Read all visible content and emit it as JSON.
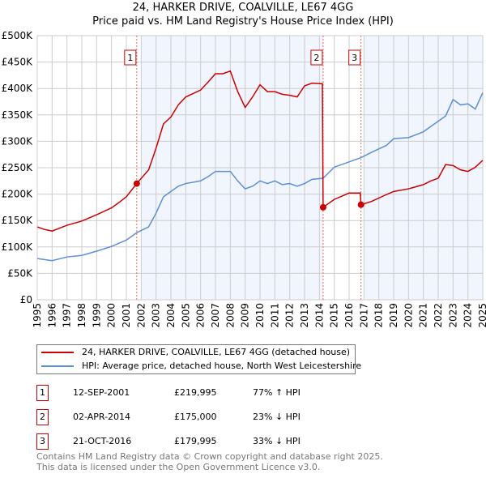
{
  "chart_data": {
    "type": "line",
    "title": "24, HARKER DRIVE, COALVILLE, LE67 4GG",
    "subtitle": "Price paid vs. HM Land Registry's House Price Index (HPI)",
    "xlim": [
      1995,
      2025
    ],
    "ylim": [
      0,
      500000
    ],
    "x_ticks": [
      "1995",
      "1996",
      "1997",
      "1998",
      "1999",
      "2000",
      "2001",
      "2002",
      "2003",
      "2004",
      "2005",
      "2006",
      "2007",
      "2008",
      "2009",
      "2010",
      "2011",
      "2012",
      "2013",
      "2014",
      "2015",
      "2016",
      "2017",
      "2018",
      "2019",
      "2020",
      "2021",
      "2022",
      "2023",
      "2024",
      "2025"
    ],
    "y_ticks": [
      {
        "v": 0,
        "label": "£0"
      },
      {
        "v": 50000,
        "label": "£50K"
      },
      {
        "v": 100000,
        "label": "£100K"
      },
      {
        "v": 150000,
        "label": "£150K"
      },
      {
        "v": 200000,
        "label": "£200K"
      },
      {
        "v": 250000,
        "label": "£250K"
      },
      {
        "v": 300000,
        "label": "£300K"
      },
      {
        "v": 350000,
        "label": "£350K"
      },
      {
        "v": 400000,
        "label": "£400K"
      },
      {
        "v": 450000,
        "label": "£450K"
      },
      {
        "v": 500000,
        "label": "£500K"
      }
    ],
    "grid": true,
    "shaded_ranges": [
      [
        2002,
        2014.25
      ],
      [
        2017,
        2025
      ]
    ],
    "series": [
      {
        "name": "24, HARKER DRIVE, COALVILLE, LE67 4GG (detached house)",
        "color": "#cc0000",
        "x": [
          1995,
          1995.5,
          1996,
          1997,
          1998,
          1999,
          2000,
          2000.5,
          2001,
          2001.7,
          2002.5,
          2003,
          2003.5,
          2004,
          2004.5,
          2005,
          2006,
          2006.5,
          2007,
          2007.5,
          2008,
          2008.5,
          2009,
          2009.5,
          2010,
          2010.5,
          2011,
          2011.5,
          2012,
          2012.5,
          2013,
          2013.5,
          2014.2,
          2014.25,
          2015,
          2016,
          2016.75,
          2016.8,
          2017.5,
          2018.5,
          2019,
          2020,
          2021,
          2021.5,
          2022,
          2022.5,
          2023,
          2023.5,
          2024,
          2024.5,
          2025
        ],
        "y": [
          138000,
          133000,
          130000,
          141000,
          149000,
          161000,
          174000,
          184000,
          195000,
          219995,
          246000,
          287000,
          333000,
          346000,
          369000,
          384000,
          397000,
          412000,
          428000,
          428000,
          433000,
          394000,
          364000,
          384000,
          407000,
          394000,
          394000,
          389000,
          387000,
          384000,
          405000,
          410000,
          409000,
          175000,
          190000,
          202000,
          202000,
          179995,
          186000,
          199000,
          205000,
          210000,
          218000,
          225000,
          230000,
          256000,
          254000,
          246000,
          243000,
          251000,
          264000
        ]
      },
      {
        "name": "HPI: Average price, detached house, North West Leicestershire",
        "color": "#5b8fd6",
        "x": [
          1995,
          1996,
          1997,
          1998,
          1999,
          2000,
          2001,
          2001.7,
          2002.5,
          2003,
          2003.5,
          2004,
          2004.5,
          2005,
          2006,
          2006.5,
          2007,
          2007.5,
          2008,
          2008.5,
          2009,
          2009.5,
          2010,
          2010.5,
          2011,
          2011.5,
          2012,
          2012.5,
          2013,
          2013.5,
          2014.25,
          2015,
          2016,
          2016.8,
          2017.5,
          2018.5,
          2019,
          2020,
          2021,
          2021.5,
          2022,
          2022.5,
          2023,
          2023.5,
          2024,
          2024.5,
          2025
        ],
        "y": [
          78000,
          74000,
          81000,
          84000,
          92000,
          101000,
          113000,
          127000,
          138000,
          164000,
          195000,
          205000,
          215000,
          220000,
          225000,
          233000,
          243000,
          243000,
          243000,
          225000,
          210000,
          215000,
          225000,
          220000,
          225000,
          218000,
          220000,
          215000,
          220000,
          228000,
          230000,
          251000,
          261000,
          269000,
          279000,
          292000,
          305000,
          307000,
          318000,
          328000,
          338000,
          348000,
          379000,
          369000,
          371000,
          361000,
          392000
        ]
      }
    ],
    "sales": [
      {
        "id": "1",
        "x": 2001.7,
        "y": 219995,
        "date": "12-SEP-2001",
        "price": "£219,995",
        "hpi": "77% ↑ HPI"
      },
      {
        "id": "2",
        "x": 2014.25,
        "y": 175000,
        "date": "02-APR-2014",
        "price": "£175,000",
        "hpi": "23% ↓ HPI"
      },
      {
        "id": "3",
        "x": 2016.8,
        "y": 179995,
        "date": "21-OCT-2016",
        "price": "£179,995",
        "hpi": "33% ↓ HPI"
      }
    ],
    "legend": {
      "placement": "bottom",
      "entries": [
        "24, HARKER DRIVE, COALVILLE, LE67 4GG (detached house)",
        "HPI: Average price, detached house, North West Leicestershire"
      ]
    }
  },
  "footer": {
    "line1": "Contains HM Land Registry data © Crown copyright and database right 2025.",
    "line2": "This data is licensed under the Open Government Licence v3.0."
  }
}
